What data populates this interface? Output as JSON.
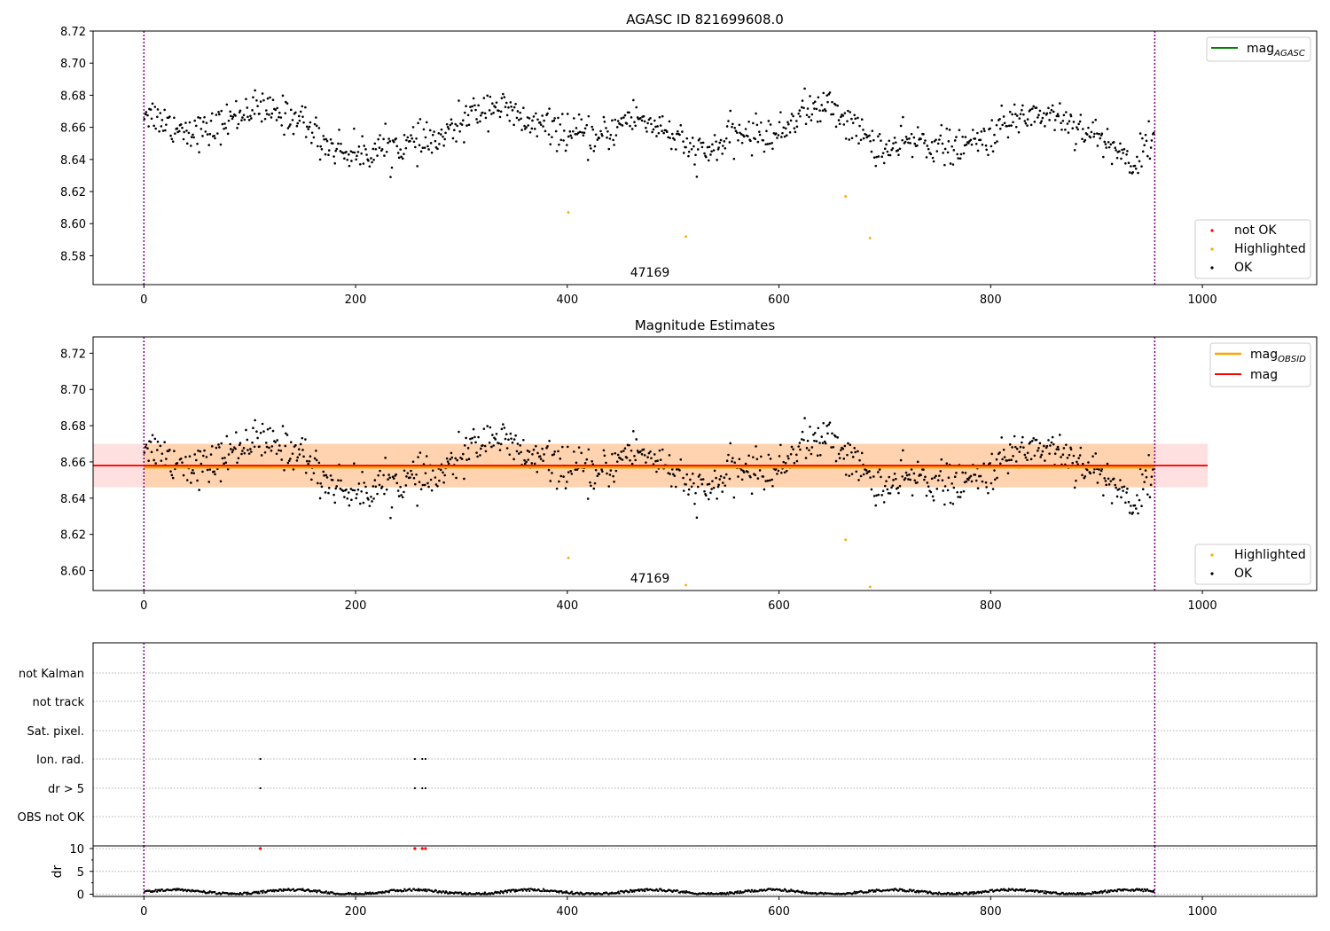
{
  "figure": {
    "panel1": {
      "title": "AGASC ID 821699608.0",
      "obsid_label": "47169",
      "legend_lines": [
        {
          "base": "mag",
          "sub": "AGASC",
          "color": "#008000"
        }
      ],
      "legend_points": [
        {
          "label": "not OK",
          "color": "#ff0000"
        },
        {
          "label": "Highlighted",
          "color": "#ffa500"
        },
        {
          "label": "OK",
          "color": "#000000"
        }
      ]
    },
    "panel2": {
      "title": "Magnitude Estimates",
      "obsid_label": "47169",
      "legend_lines": [
        {
          "base": "mag",
          "sub": "OBSID",
          "color": "#ffa500"
        },
        {
          "base": "mag",
          "sub": "",
          "color": "#ff0000"
        }
      ],
      "legend_points": [
        {
          "label": "Highlighted",
          "color": "#ffa500"
        },
        {
          "label": "OK",
          "color": "#000000"
        }
      ]
    },
    "panel3": {
      "flag_labels": [
        "not Kalman",
        "not track",
        "Sat. pixel.",
        "Ion. rad.",
        "dr > 5",
        "OBS not OK"
      ],
      "dr_label": "dr"
    }
  },
  "chart_data": [
    {
      "type": "scatter",
      "title": "AGASC ID 821699608.0",
      "xlim": [
        -48,
        1108
      ],
      "ylim": [
        8.562,
        8.72
      ],
      "xticks": [
        0,
        200,
        400,
        600,
        800,
        1000
      ],
      "yticks": [
        8.58,
        8.6,
        8.62,
        8.64,
        8.66,
        8.68,
        8.7,
        8.72
      ],
      "grid": false,
      "legend_placement": [
        "upper right",
        "lower right"
      ],
      "vlines": [
        0,
        955
      ],
      "n_ok_points": 955,
      "ok_series_summary": {
        "mean": 8.657,
        "min": 8.626,
        "max": 8.69
      },
      "highlighted": {
        "x": [
          401,
          512,
          663,
          686
        ],
        "y": [
          8.607,
          8.592,
          8.617,
          8.591
        ]
      },
      "annotations": [
        {
          "text": "47169",
          "x": 477,
          "y": 8.568
        }
      ]
    },
    {
      "type": "scatter",
      "title": "Magnitude Estimates",
      "xlim": [
        -48,
        1108
      ],
      "ylim": [
        8.589,
        8.729
      ],
      "xticks": [
        0,
        200,
        400,
        600,
        800,
        1000
      ],
      "yticks": [
        8.6,
        8.62,
        8.64,
        8.66,
        8.68,
        8.7,
        8.72
      ],
      "grid": false,
      "legend_placement": [
        "upper right",
        "lower right"
      ],
      "vlines": [
        0,
        955
      ],
      "mag": 8.658,
      "mag_band": [
        8.646,
        8.67
      ],
      "mag_obsid": 8.657,
      "mag_obsid_band": [
        8.646,
        8.67
      ],
      "highlighted": {
        "x": [
          401,
          512,
          663,
          686
        ],
        "y": [
          8.607,
          8.592,
          8.617,
          8.591
        ]
      },
      "annotations": [
        {
          "text": "47169",
          "x": 477,
          "y": 8.593
        }
      ]
    },
    {
      "type": "scatter",
      "xlim": [
        -48,
        1108
      ],
      "xticks": [
        0,
        200,
        400,
        600,
        800,
        1000
      ],
      "yticks_dr": [
        0,
        5,
        10
      ],
      "categories": [
        "not Kalman",
        "not track",
        "Sat. pixel.",
        "Ion. rad.",
        "dr > 5",
        "OBS not OK"
      ],
      "flag_points": {
        "Ion. rad.": [
          110,
          256,
          263,
          266
        ],
        "dr > 5": [
          110,
          256,
          263,
          266
        ]
      },
      "dr_outliers_x": [
        110,
        256,
        263,
        266
      ],
      "dr_outlier_value": 10,
      "vlines": [
        0,
        955
      ]
    }
  ]
}
